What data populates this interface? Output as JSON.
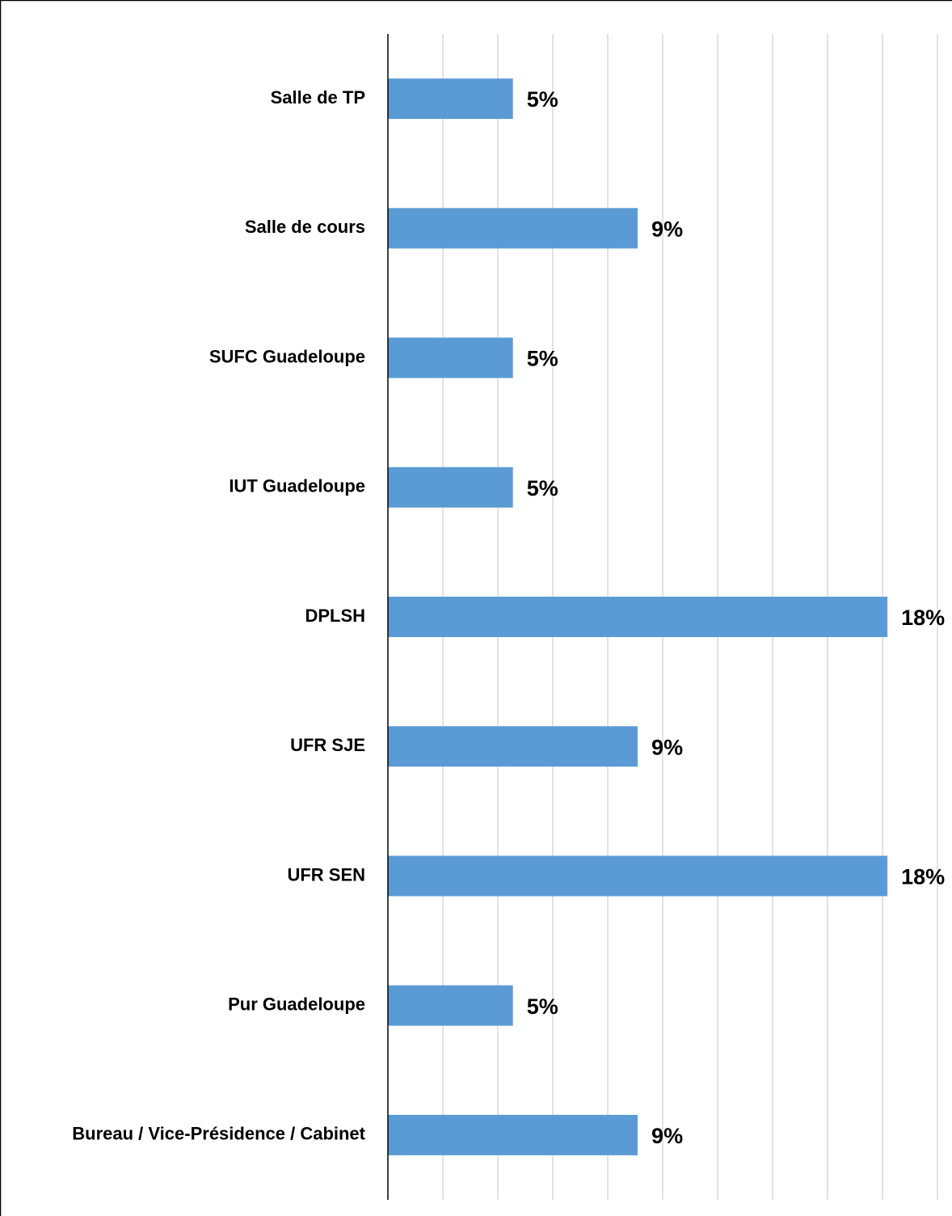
{
  "chart_data": {
    "type": "barh",
    "categories": [
      "Salle de TP",
      "Salle de cours",
      "SUFC Guadeloupe",
      "IUT Guadeloupe",
      "DPLSH",
      "UFR SJE",
      "UFR SEN",
      "Pur Guadeloupe",
      "Bureau / Vice-Présidence / Cabinet"
    ],
    "values": [
      4.55,
      9.09,
      4.55,
      4.55,
      18.18,
      9.09,
      18.18,
      4.55,
      9.09
    ],
    "value_labels": [
      "5%",
      "9%",
      "5%",
      "5%",
      "18%",
      "9%",
      "18%",
      "5%",
      "9%"
    ],
    "color": "#5b9bd5",
    "xlim": [
      0,
      20
    ],
    "xticks": [
      0,
      2,
      4,
      6,
      8,
      10,
      12,
      14,
      16,
      18,
      20
    ],
    "grid": true
  }
}
